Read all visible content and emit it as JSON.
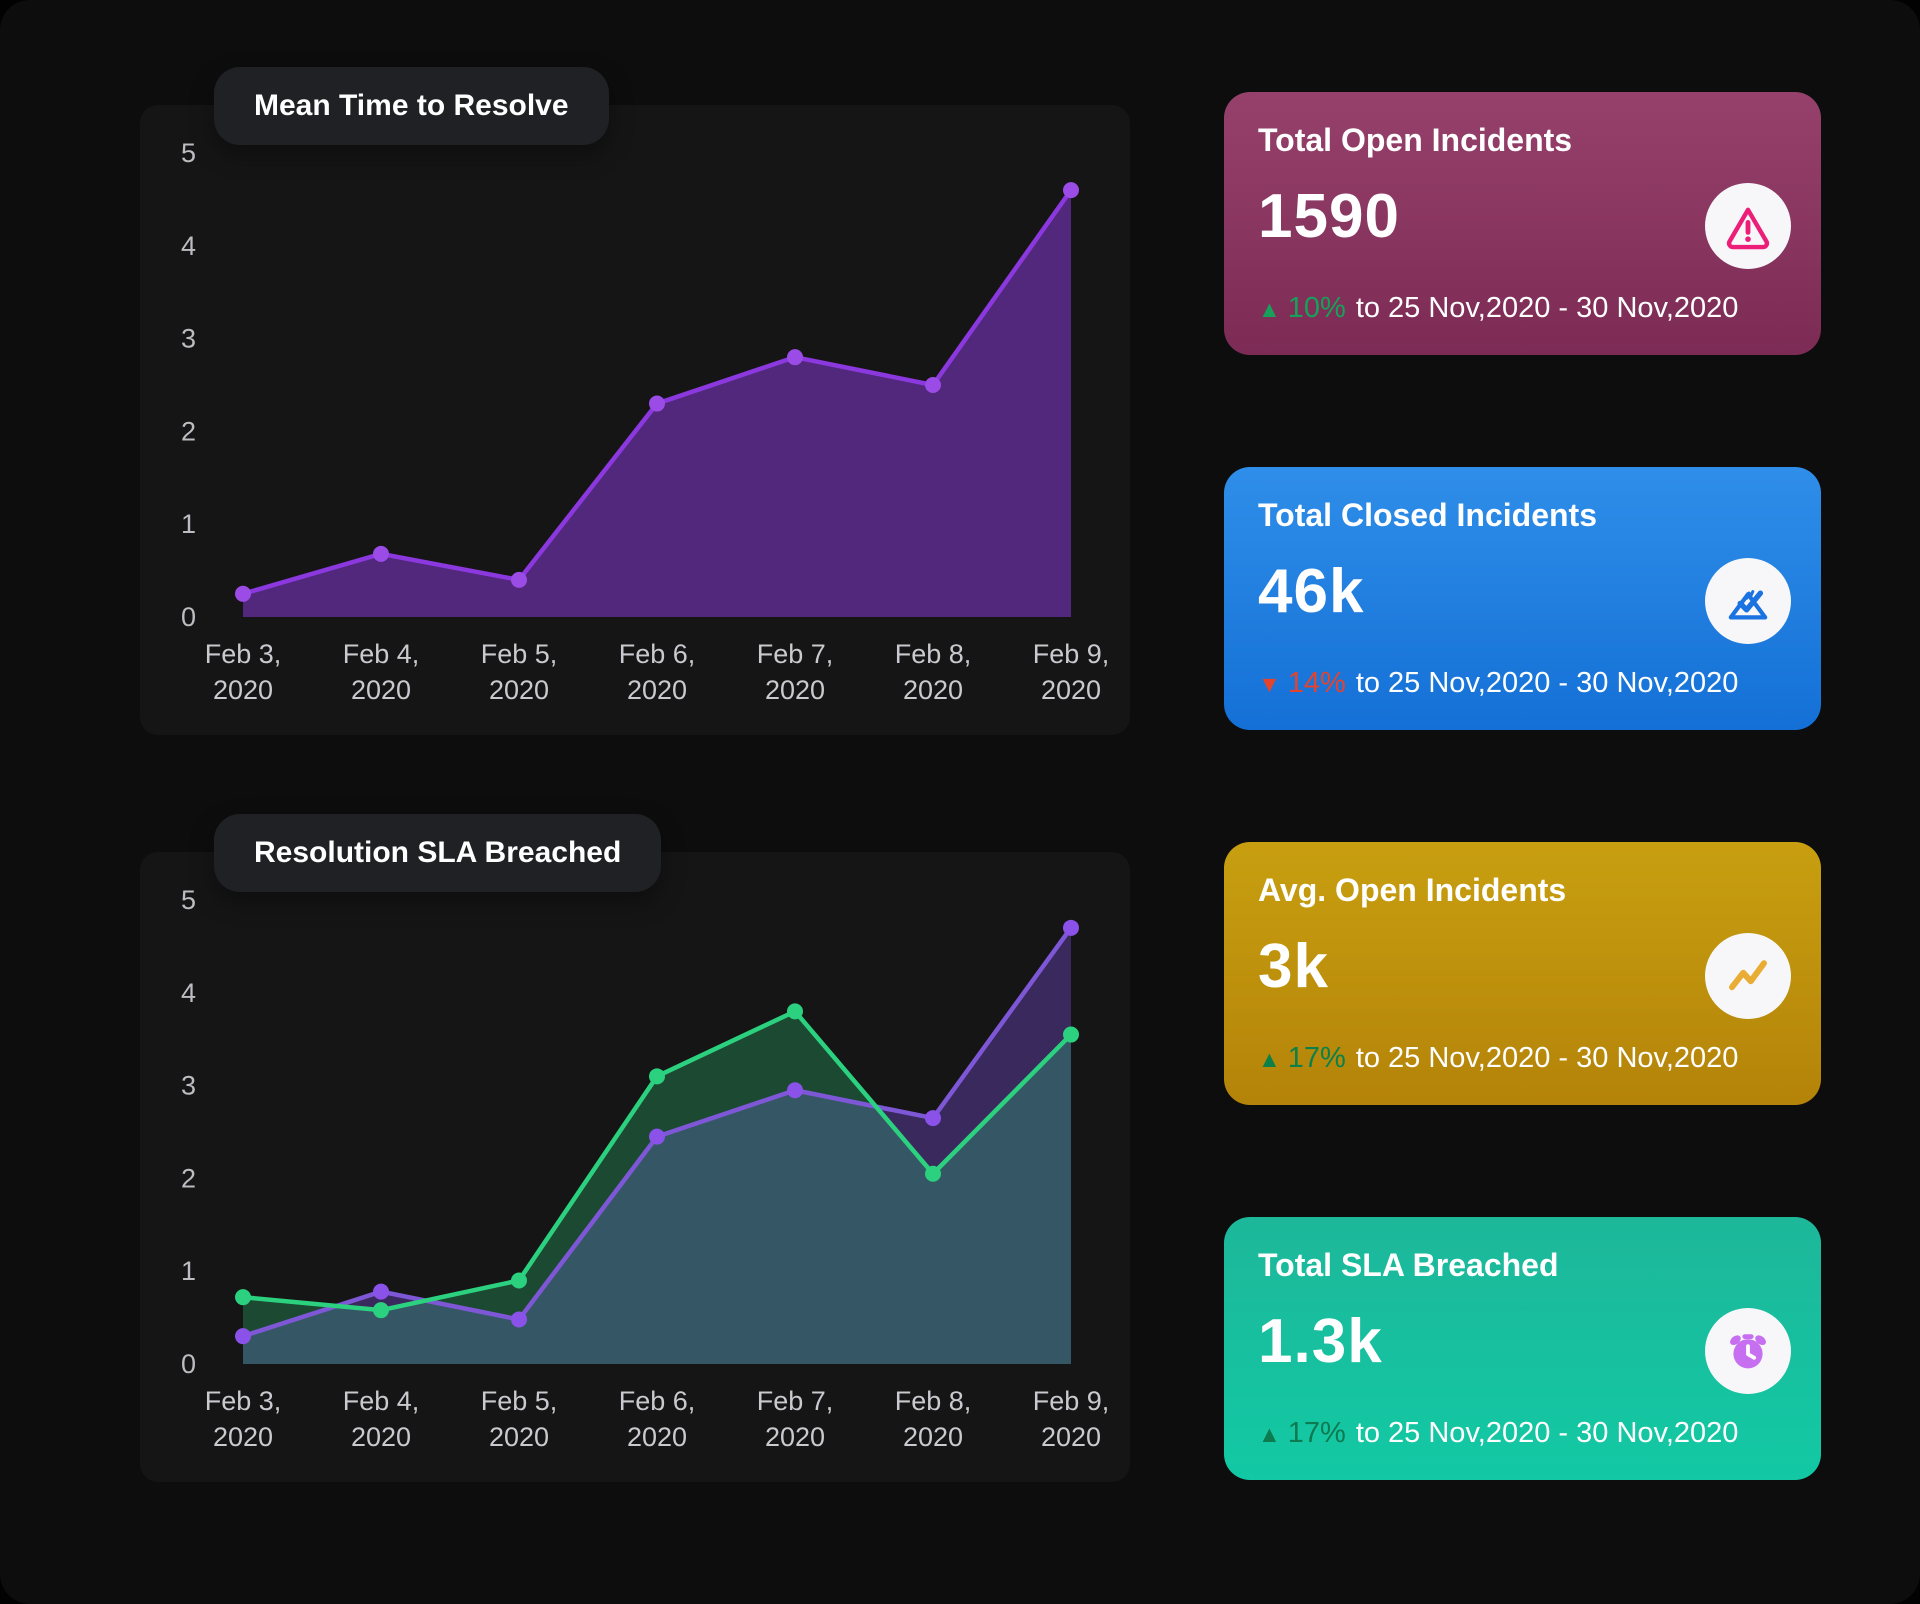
{
  "theme": {
    "page_background": "#0d0d0e",
    "panel_background": "#151516",
    "bubble_background": "#1f2124",
    "tick_color": "#bcbcc1",
    "up_green": "#12995a",
    "down_red": "#e2442e"
  },
  "chart_data": [
    {
      "type": "area",
      "title": "Mean Time to Resolve",
      "x": [
        "Feb 3, 2020",
        "Feb 4, 2020",
        "Feb 5, 2020",
        "Feb 6, 2020",
        "Feb 7, 2020",
        "Feb 8, 2020",
        "Feb 9, 2020"
      ],
      "y_ticks": [
        0,
        1,
        2,
        3,
        4,
        5
      ],
      "ylim": [
        0,
        5
      ],
      "grid": false,
      "legend": false,
      "series": [
        {
          "name": "Mean Time to Resolve",
          "color": "#8b38de",
          "dot": "#9b4ce6",
          "fill": "#51287c",
          "values": [
            0.25,
            0.68,
            0.4,
            2.3,
            2.8,
            2.5,
            4.6
          ]
        }
      ]
    },
    {
      "type": "area",
      "title": "Resolution SLA Breached",
      "x": [
        "Feb 3, 2020",
        "Feb 4, 2020",
        "Feb 5, 2020",
        "Feb 6, 2020",
        "Feb 7, 2020",
        "Feb 8, 2020",
        "Feb 9, 2020"
      ],
      "y_ticks": [
        0,
        1,
        2,
        3,
        4,
        5
      ],
      "ylim": [
        0,
        5
      ],
      "grid": false,
      "legend": false,
      "series": [
        {
          "name": "SLA Breached - purple series",
          "color": "#7e57d6",
          "dot": "#8a52e8",
          "fill": "rgba(130,80,223,0.35)",
          "values": [
            0.3,
            0.78,
            0.48,
            2.45,
            2.95,
            2.65,
            4.7
          ]
        },
        {
          "name": "SLA Breached - green series",
          "color": "#2bd17e",
          "dot": "#2bd17e",
          "fill": "rgba(43,209,126,0.28)",
          "values": [
            0.72,
            0.58,
            0.9,
            3.1,
            3.8,
            2.05,
            3.55
          ]
        }
      ]
    }
  ],
  "cards": [
    {
      "title": "Total Open Incidents",
      "value": "1590",
      "delta_glyph": "▲",
      "delta": "10%",
      "delta_color": "#16a05a",
      "period": "to 25 Nov,2020 - 30 Nov,2020",
      "gradient": [
        "#96416b",
        "#7c2b55"
      ],
      "icon": "warning-triangle-icon",
      "icon_color": "#ec1e78"
    },
    {
      "title": "Total Closed Incidents",
      "value": "46k",
      "delta_glyph": "▼",
      "delta": "14%",
      "delta_color": "#e2442e",
      "period": "to 25 Nov,2020 - 30 Nov,2020",
      "gradient": [
        "#2f8ee9",
        "#1470d6"
      ],
      "icon": "check-tray-icon",
      "icon_color": "#1a73e0"
    },
    {
      "title": "Avg. Open Incidents",
      "value": "3k",
      "delta_glyph": "▲",
      "delta": "17%",
      "delta_color": "#0d8049",
      "period": "to 25 Nov,2020 - 30 Nov,2020",
      "gradient": [
        "#c89f10",
        "#b48309"
      ],
      "icon": "trend-up-icon",
      "icon_color": "#e9ad33"
    },
    {
      "title": "Total SLA Breached",
      "value": "1.3k",
      "delta_glyph": "▲",
      "delta": "17%",
      "delta_color": "#0d7a4f",
      "period": "to 25 Nov,2020 - 30 Nov,2020",
      "gradient": [
        "#1db79a",
        "#12c9a4"
      ],
      "icon": "alarm-clock-icon",
      "icon_color": "#c66ff0"
    }
  ]
}
